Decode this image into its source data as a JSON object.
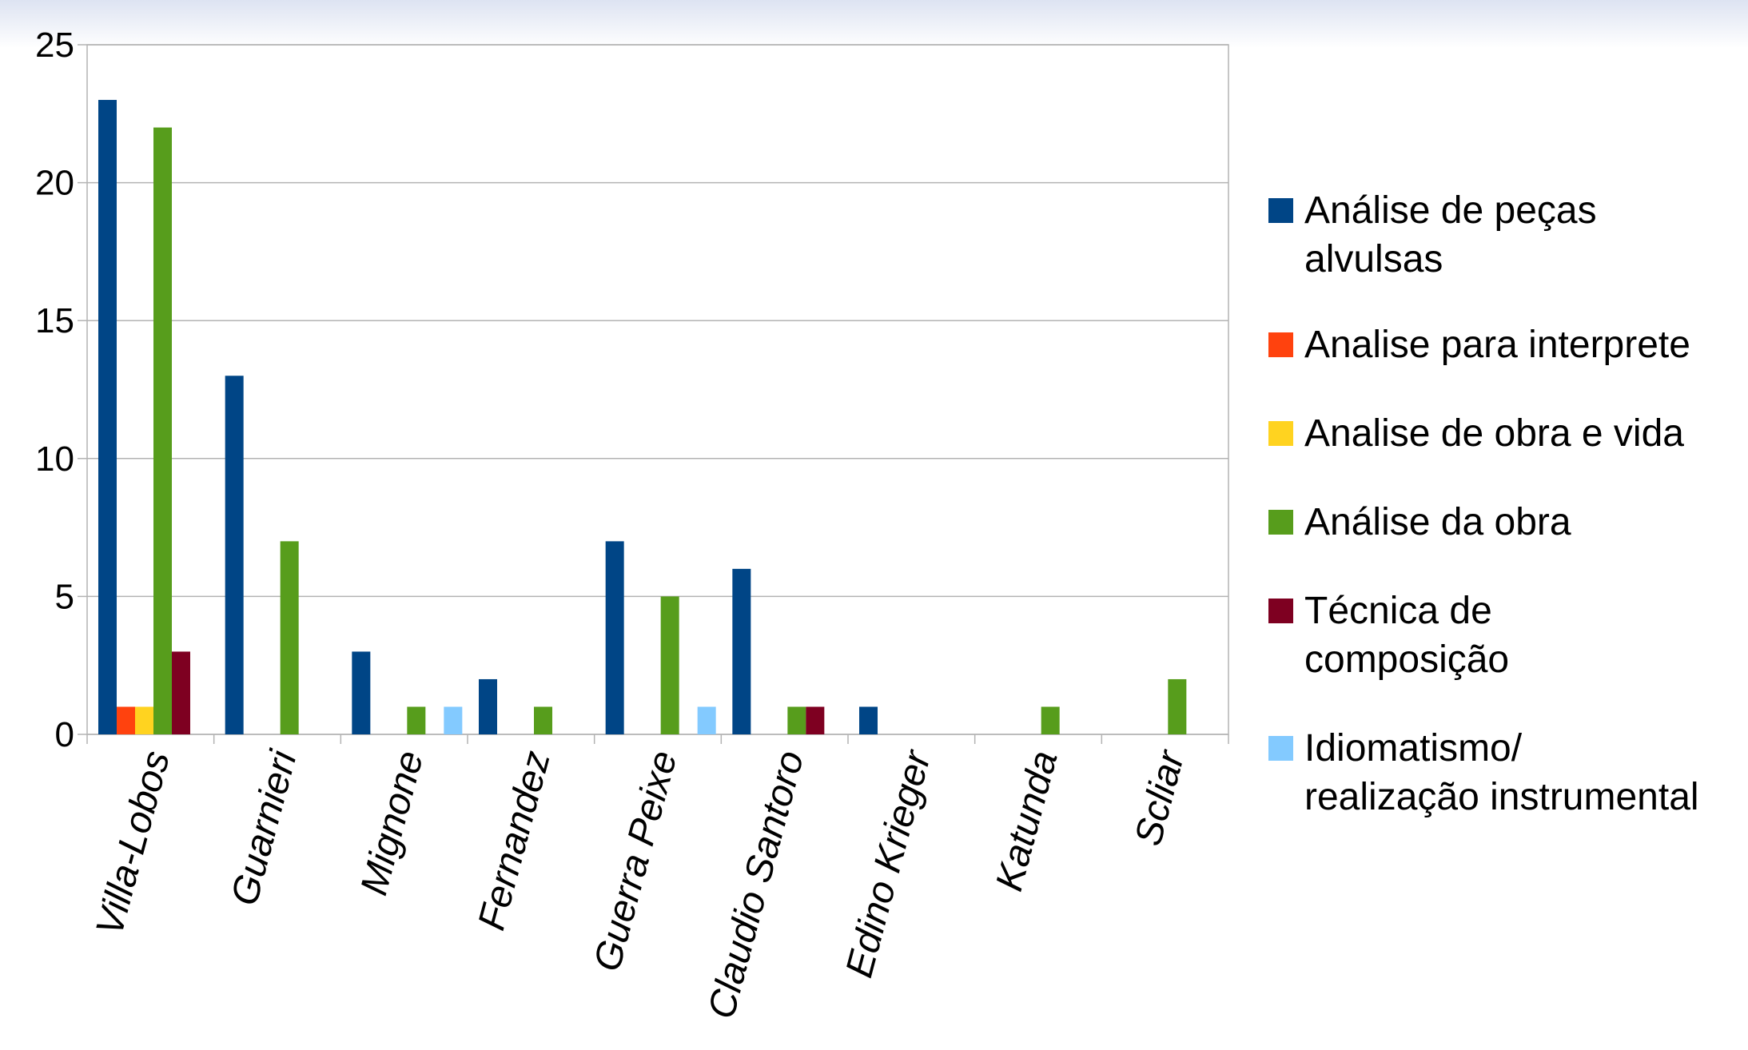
{
  "chart_data": {
    "type": "bar",
    "title": "",
    "xlabel": "",
    "ylabel": "",
    "ylim": [
      0,
      25
    ],
    "yticks": [
      0,
      5,
      10,
      15,
      20,
      25
    ],
    "grid": true,
    "legend_position": "right",
    "categories": [
      "Villa-Lobos",
      "Guarnieri",
      "Mignone",
      "Fernandez",
      "Guerra Peixe",
      "Claudio Santoro",
      "Edino Krieger",
      "Katunda",
      "Scliar"
    ],
    "series": [
      {
        "name": "Análise de peças alvulsas",
        "legend_lines": [
          "Análise de peças",
          "alvulsas"
        ],
        "color": "#004586",
        "values": [
          23,
          13,
          3,
          2,
          7,
          6,
          1,
          0,
          0
        ]
      },
      {
        "name": "Analise para interprete",
        "legend_lines": [
          "Analise para interprete"
        ],
        "color": "#ff420e",
        "values": [
          1,
          0,
          0,
          0,
          0,
          0,
          0,
          0,
          0
        ]
      },
      {
        "name": "Analise de obra e vida",
        "legend_lines": [
          "Analise de obra e vida"
        ],
        "color": "#ffd320",
        "values": [
          1,
          0,
          0,
          0,
          0,
          0,
          0,
          0,
          0
        ]
      },
      {
        "name": "Análise da obra",
        "legend_lines": [
          "Análise da obra"
        ],
        "color": "#579d1c",
        "values": [
          22,
          7,
          1,
          1,
          5,
          1,
          0,
          1,
          2
        ]
      },
      {
        "name": "Técnica de composição",
        "legend_lines": [
          "Técnica de",
          "composição"
        ],
        "color": "#7e0021",
        "values": [
          3,
          0,
          0,
          0,
          0,
          1,
          0,
          0,
          0
        ]
      },
      {
        "name": "Idiomatismo/ realização instrumental",
        "legend_lines": [
          "Idiomatismo/",
          "realização instrumental"
        ],
        "color": "#83caff",
        "values": [
          0,
          0,
          1,
          0,
          1,
          0,
          0,
          0,
          0
        ]
      }
    ]
  }
}
